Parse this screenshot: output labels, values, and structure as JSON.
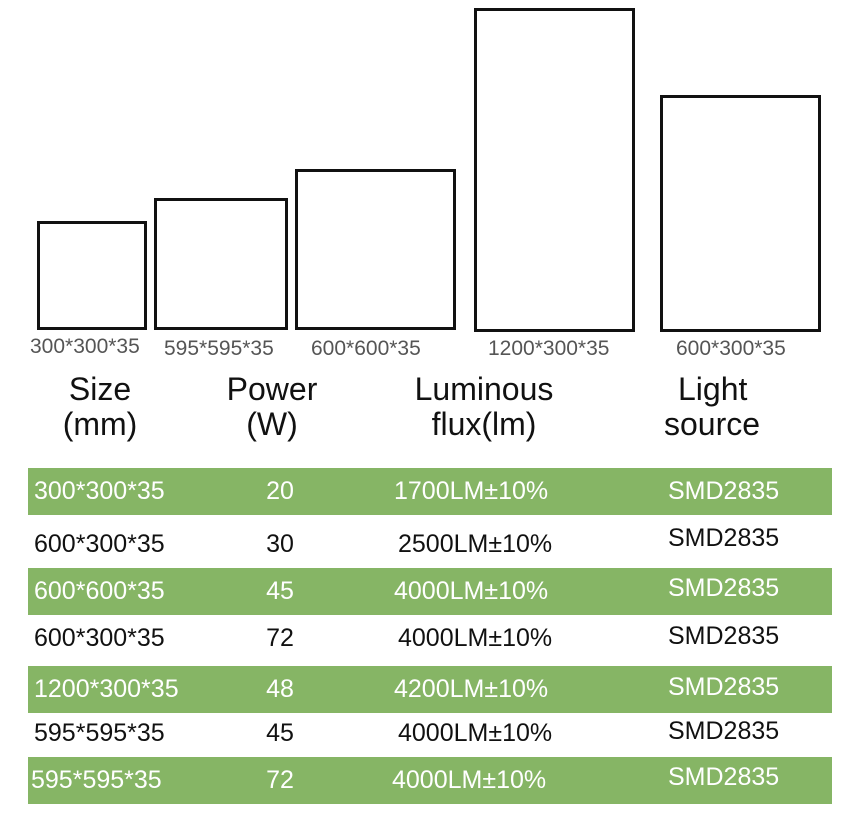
{
  "diagram": {
    "panel_labels": [
      "300*300*35",
      "595*595*35",
      "600*600*35",
      "1200*300*35",
      "600*300*35"
    ]
  },
  "table": {
    "headers": {
      "size": [
        "Size",
        "(mm)"
      ],
      "power": [
        "Power",
        "(W)"
      ],
      "flux": [
        "Luminous",
        "flux(lm)"
      ],
      "source": [
        "Light",
        "source"
      ]
    },
    "rows": [
      {
        "size": "300*300*35",
        "power": "20",
        "flux": "1700LM±10%",
        "source": "SMD2835"
      },
      {
        "size": "600*300*35",
        "power": "30",
        "flux": "2500LM±10%",
        "source": "SMD2835"
      },
      {
        "size": "600*600*35",
        "power": "45",
        "flux": "4000LM±10%",
        "source": "SMD2835"
      },
      {
        "size": "600*300*35",
        "power": "72",
        "flux": "4000LM±10%",
        "source": "SMD2835"
      },
      {
        "size": "1200*300*35",
        "power": "48",
        "flux": "4200LM±10%",
        "source": "SMD2835"
      },
      {
        "size": "595*595*35",
        "power": "45",
        "flux": "4000LM±10%",
        "source": "SMD2835"
      },
      {
        "size": "595*595*35",
        "power": "72",
        "flux": "4000LM±10%",
        "source": "SMD2835"
      }
    ]
  },
  "colors": {
    "row_band": "#86b565",
    "panel_border": "#111111",
    "label_gray": "#555555"
  }
}
